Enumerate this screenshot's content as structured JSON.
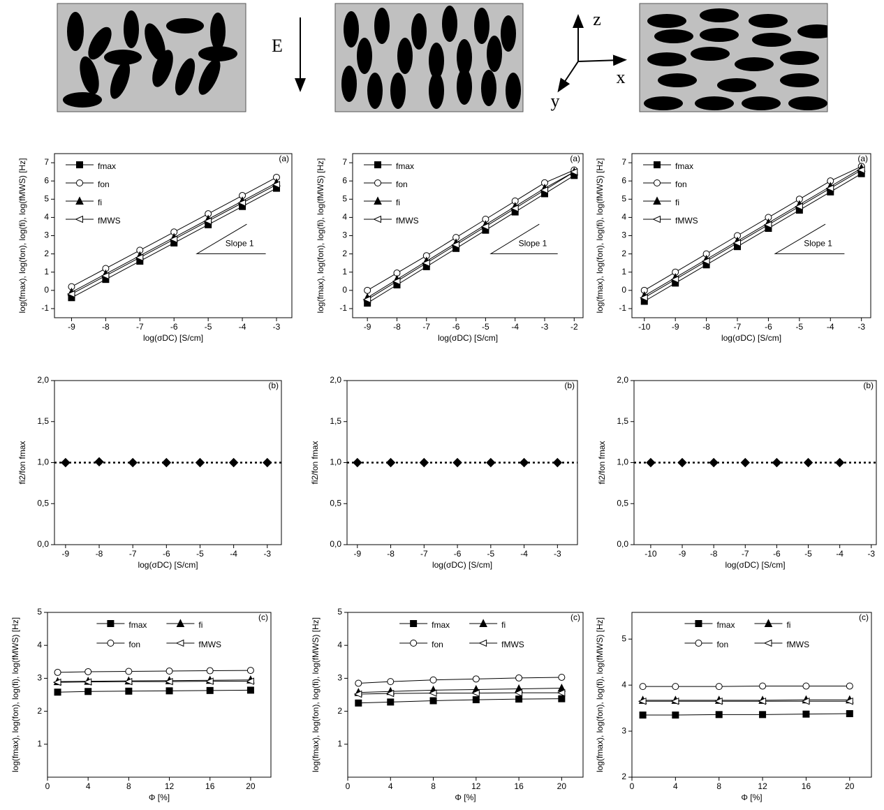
{
  "diagram": {
    "field_label": "E",
    "axis_labels": [
      "z",
      "x",
      "y"
    ]
  },
  "chart_data": [
    {
      "type": "line",
      "annotation": "(a)",
      "slope_label": "Slope 1",
      "xlabel": "log(σDC) [S/cm]",
      "ylabel": "log(fmax), log(fon), log(fi), log(fMWS) [Hz]",
      "legend": "upper left",
      "legend_columns": 1,
      "x": [
        -9,
        -8,
        -7,
        -6,
        -5,
        -4,
        -3
      ],
      "xlim": [
        -9.5,
        -2.55
      ],
      "xticks": [
        -9,
        -8,
        -7,
        -6,
        -5,
        -4,
        -3
      ],
      "ylim": [
        -1.5,
        7.5
      ],
      "yticks": [
        -1,
        0,
        1,
        2,
        3,
        4,
        5,
        6,
        7
      ],
      "series": [
        {
          "name": "fmax",
          "color": "#000000",
          "marker": "square",
          "values": [
            -0.4,
            0.6,
            1.6,
            2.6,
            3.6,
            4.6,
            5.6
          ]
        },
        {
          "name": "fon",
          "color": "#000000",
          "marker": "circle",
          "values": [
            0.2,
            1.2,
            2.2,
            3.2,
            4.2,
            5.2,
            6.2
          ]
        },
        {
          "name": "fi",
          "color": "#000000",
          "marker": "triangle-up",
          "values": [
            -0.1,
            0.9,
            1.9,
            2.9,
            3.9,
            4.9,
            5.9
          ]
        },
        {
          "name": "fMWS",
          "color": "#000000",
          "marker": "triangle-left",
          "values": [
            -0.2,
            0.8,
            1.8,
            2.8,
            3.8,
            4.8,
            5.8
          ]
        }
      ]
    },
    {
      "type": "line",
      "annotation": "(a)",
      "slope_label": "Slope 1",
      "xlabel": "log(σDC) [S/cm]",
      "ylabel": "log(fmax), log(fon), log(fi), log(fMWS) [Hz]",
      "legend": "upper left",
      "legend_columns": 1,
      "x": [
        -9,
        -8,
        -7,
        -6,
        -5,
        -4,
        -3,
        -2
      ],
      "xlim": [
        -9.5,
        -1.7
      ],
      "xticks": [
        -9,
        -8,
        -7,
        -6,
        -5,
        -4,
        -3,
        -2
      ],
      "ylim": [
        -1.5,
        7.5
      ],
      "yticks": [
        -1,
        0,
        1,
        2,
        3,
        4,
        5,
        6,
        7
      ],
      "series": [
        {
          "name": "fmax",
          "color": "#000000",
          "marker": "square",
          "values": [
            -0.7,
            0.3,
            1.3,
            2.3,
            3.3,
            4.3,
            5.3,
            6.3
          ]
        },
        {
          "name": "fon",
          "color": "#000000",
          "marker": "circle",
          "values": [
            0,
            0.95,
            1.9,
            2.9,
            3.9,
            4.9,
            5.9,
            6.6
          ]
        },
        {
          "name": "fi",
          "color": "#000000",
          "marker": "triangle-up",
          "values": [
            -0.4,
            0.6,
            1.6,
            2.6,
            3.6,
            4.6,
            5.6,
            6.5
          ]
        },
        {
          "name": "fMWS",
          "color": "#000000",
          "marker": "triangle-left",
          "values": [
            -0.5,
            0.5,
            1.5,
            2.5,
            3.5,
            4.5,
            5.5,
            6.5
          ]
        }
      ]
    },
    {
      "type": "line",
      "annotation": "(a)",
      "slope_label": "Slope 1",
      "xlabel": "log(σDC) [S/cm]",
      "ylabel": "log(fmax), log(fon), log(fi), log(fMWS) [Hz]",
      "legend": "upper left",
      "legend_columns": 1,
      "x": [
        -10,
        -9,
        -8,
        -7,
        -6,
        -5,
        -4,
        -3
      ],
      "xlim": [
        -10.4,
        -2.7
      ],
      "xticks": [
        -10,
        -9,
        -8,
        -7,
        -6,
        -5,
        -4,
        -3
      ],
      "ylim": [
        -1.5,
        7.5
      ],
      "yticks": [
        -1,
        0,
        1,
        2,
        3,
        4,
        5,
        6,
        7
      ],
      "series": [
        {
          "name": "fmax",
          "color": "#000000",
          "marker": "square",
          "values": [
            -0.6,
            0.4,
            1.4,
            2.4,
            3.4,
            4.4,
            5.4,
            6.4
          ]
        },
        {
          "name": "fon",
          "color": "#000000",
          "marker": "circle",
          "values": [
            0,
            1,
            2,
            3,
            4,
            5,
            6,
            6.8
          ]
        },
        {
          "name": "fi",
          "color": "#000000",
          "marker": "triangle-up",
          "values": [
            -0.3,
            0.7,
            1.7,
            2.7,
            3.7,
            4.7,
            5.7,
            6.7
          ]
        },
        {
          "name": "fMWS",
          "color": "#000000",
          "marker": "triangle-left",
          "values": [
            -0.4,
            0.6,
            1.6,
            2.6,
            3.6,
            4.6,
            5.6,
            6.6
          ]
        }
      ]
    },
    {
      "type": "scatter",
      "annotation": "(b)",
      "xlabel": "log(σDC) [S/cm]",
      "ylabel": "fi2/fon fmax",
      "marker": "diamond",
      "color": "#000000",
      "reference_line": 1,
      "x": [
        -9,
        -8,
        -7,
        -6,
        -5,
        -4,
        -3
      ],
      "values": [
        1,
        1.01,
        1,
        1,
        1,
        1,
        1
      ],
      "xlim": [
        -9.33,
        -2.58
      ],
      "xticks": [
        -9,
        -8,
        -7,
        -6,
        -5,
        -4,
        -3
      ],
      "ylim": [
        0,
        2
      ],
      "yticks": [
        {
          "value": 0,
          "label": "0,0"
        },
        {
          "value": 0.5,
          "label": "0,5"
        },
        {
          "value": 1,
          "label": "1,0"
        },
        {
          "value": 1.5,
          "label": "1,5"
        },
        {
          "value": 2,
          "label": "2,0"
        }
      ]
    },
    {
      "type": "scatter",
      "annotation": "(b)",
      "xlabel": "log(σDC) [S/cm]",
      "ylabel": "fi2/fon fmax",
      "marker": "diamond",
      "color": "#000000",
      "reference_line": 1,
      "x": [
        -9,
        -8,
        -7,
        -6,
        -5,
        -4,
        -3
      ],
      "values": [
        1,
        1,
        1,
        1,
        1,
        1,
        1
      ],
      "xlim": [
        -9.31,
        -2.4
      ],
      "xticks": [
        -9,
        -8,
        -7,
        -6,
        -5,
        -4,
        -3
      ],
      "ylim": [
        0,
        2
      ],
      "yticks": [
        {
          "value": 0,
          "label": "0,0"
        },
        {
          "value": 0.5,
          "label": "0,5"
        },
        {
          "value": 1,
          "label": "1,0"
        },
        {
          "value": 1.5,
          "label": "1,5"
        },
        {
          "value": 2,
          "label": "2,0"
        }
      ]
    },
    {
      "type": "scatter",
      "annotation": "(b)",
      "xlabel": "log(σDC) [S/cm]",
      "ylabel": "fi2/fon fmax",
      "marker": "diamond",
      "color": "#000000",
      "reference_line": 1,
      "x": [
        -10,
        -9,
        -8,
        -7,
        -6,
        -5,
        -4
      ],
      "values": [
        1,
        1,
        1,
        1,
        1,
        1,
        1
      ],
      "xlim": [
        -10.53,
        -2.84
      ],
      "xticks": [
        -10,
        -9,
        -8,
        -7,
        -6,
        -5,
        -4,
        -3
      ],
      "ylim": [
        0,
        2
      ],
      "yticks": [
        {
          "value": 0,
          "label": "0,0"
        },
        {
          "value": 0.5,
          "label": "0,5"
        },
        {
          "value": 1,
          "label": "1,0"
        },
        {
          "value": 1.5,
          "label": "1,5"
        },
        {
          "value": 2,
          "label": "2,0"
        }
      ]
    },
    {
      "type": "line",
      "annotation": "(c)",
      "xlabel": "Φ [%]",
      "ylabel": "log(fmax), log(fon), log(fi), log(fMWS) [Hz]",
      "legend": "upper center",
      "legend_columns": 2,
      "x": [
        1,
        4,
        8,
        12,
        16,
        20
      ],
      "xlim": [
        0,
        22
      ],
      "xticks": [
        0,
        4,
        8,
        12,
        16,
        20
      ],
      "ylim": [
        0,
        5
      ],
      "yticks": [
        1,
        2,
        3,
        4,
        5
      ],
      "series": [
        {
          "name": "fmax",
          "color": "#000000",
          "marker": "square",
          "values": [
            2.58,
            2.6,
            2.61,
            2.62,
            2.63,
            2.64
          ]
        },
        {
          "name": "fon",
          "color": "#000000",
          "marker": "circle",
          "values": [
            3.18,
            3.2,
            3.21,
            3.22,
            3.23,
            3.24
          ]
        },
        {
          "name": "fi",
          "color": "#000000",
          "marker": "triangle-up",
          "values": [
            2.9,
            2.91,
            2.92,
            2.93,
            2.94,
            2.95
          ]
        },
        {
          "name": "fMWS",
          "color": "#000000",
          "marker": "triangle-left",
          "values": [
            2.88,
            2.89,
            2.9,
            2.9,
            2.91,
            2.91
          ]
        }
      ]
    },
    {
      "type": "line",
      "annotation": "(c)",
      "xlabel": "Φ [%]",
      "ylabel": "log(fmax), log(fon), log(fi), log(fMWS) [Hz]",
      "legend": "upper center",
      "legend_columns": 2,
      "x": [
        1,
        4,
        8,
        12,
        16,
        20
      ],
      "xlim": [
        0,
        22
      ],
      "xticks": [
        0,
        4,
        8,
        12,
        16,
        20
      ],
      "ylim": [
        0,
        5
      ],
      "yticks": [
        1,
        2,
        3,
        4,
        5
      ],
      "series": [
        {
          "name": "fmax",
          "color": "#000000",
          "marker": "square",
          "values": [
            2.25,
            2.28,
            2.32,
            2.35,
            2.37,
            2.38
          ]
        },
        {
          "name": "fon",
          "color": "#000000",
          "marker": "circle",
          "values": [
            2.85,
            2.9,
            2.95,
            2.98,
            3.01,
            3.03
          ]
        },
        {
          "name": "fi",
          "color": "#000000",
          "marker": "triangle-up",
          "values": [
            2.57,
            2.6,
            2.64,
            2.66,
            2.68,
            2.7
          ]
        },
        {
          "name": "fMWS",
          "color": "#000000",
          "marker": "triangle-left",
          "values": [
            2.52,
            2.54,
            2.55,
            2.55,
            2.56,
            2.56
          ]
        }
      ]
    },
    {
      "type": "line",
      "annotation": "(c)",
      "xlabel": "Φ [%]",
      "ylabel": "log(fmax), log(fon), log(fi), log(fMWS) [Hz]",
      "legend": "upper center",
      "legend_columns": 2,
      "x": [
        1,
        4,
        8,
        12,
        16,
        20
      ],
      "xlim": [
        0,
        22
      ],
      "xticks": [
        0,
        4,
        8,
        12,
        16,
        20
      ],
      "ylim": [
        2,
        5.58
      ],
      "yticks": [
        2,
        3,
        4,
        5
      ],
      "series": [
        {
          "name": "fmax",
          "color": "#000000",
          "marker": "square",
          "values": [
            3.35,
            3.35,
            3.36,
            3.36,
            3.37,
            3.38
          ]
        },
        {
          "name": "fon",
          "color": "#000000",
          "marker": "circle",
          "values": [
            3.97,
            3.97,
            3.97,
            3.98,
            3.98,
            3.98
          ]
        },
        {
          "name": "fi",
          "color": "#000000",
          "marker": "triangle-up",
          "values": [
            3.67,
            3.67,
            3.67,
            3.67,
            3.68,
            3.68
          ]
        },
        {
          "name": "fMWS",
          "color": "#000000",
          "marker": "triangle-left",
          "values": [
            3.65,
            3.65,
            3.65,
            3.65,
            3.65,
            3.65
          ]
        }
      ]
    }
  ]
}
